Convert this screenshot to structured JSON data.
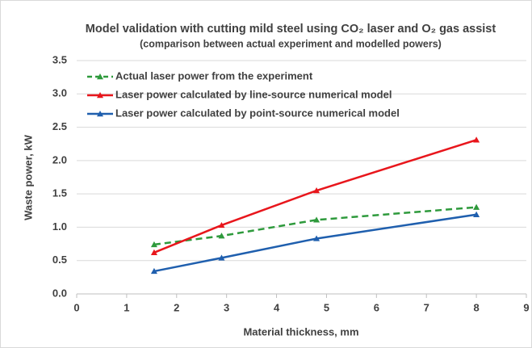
{
  "chart_data": {
    "type": "line",
    "title": "Model validation with cutting mild steel using CO₂ laser and O₂ gas assist",
    "subtitle": "(comparison between actual experiment and modelled powers)",
    "x_label": "Material thickness, mm",
    "y_label": "Waste power, kW",
    "x": [
      1.55,
      2.9,
      4.8,
      8
    ],
    "series": [
      {
        "name": "Actual laser power from the experiment",
        "color": "#2e9a3c",
        "line_style": "dashed",
        "values": [
          0.74,
          0.87,
          1.11,
          1.3
        ]
      },
      {
        "name": "Laser power calculated by line-source numerical model",
        "color": "#e8161c",
        "line_style": "solid",
        "values": [
          0.62,
          1.03,
          1.55,
          2.31
        ]
      },
      {
        "name": "Laser power calculated by point-source numerical model",
        "color": "#1f5fae",
        "line_style": "solid",
        "values": [
          0.34,
          0.54,
          0.83,
          1.19
        ]
      }
    ],
    "xlim": [
      0,
      9
    ],
    "xticks": [
      0,
      1,
      2,
      3,
      4,
      5,
      6,
      7,
      8,
      9
    ],
    "ylim": [
      0,
      3.5
    ],
    "yticks": [
      {
        "value": 0,
        "label": "0.0"
      },
      0.5,
      {
        "value": 1,
        "label": "1.0"
      },
      1.5,
      {
        "value": 2,
        "label": "2.0"
      },
      2.5,
      {
        "value": 3,
        "label": "3.0"
      },
      3.5
    ],
    "grid": true,
    "legend": "upper left"
  }
}
